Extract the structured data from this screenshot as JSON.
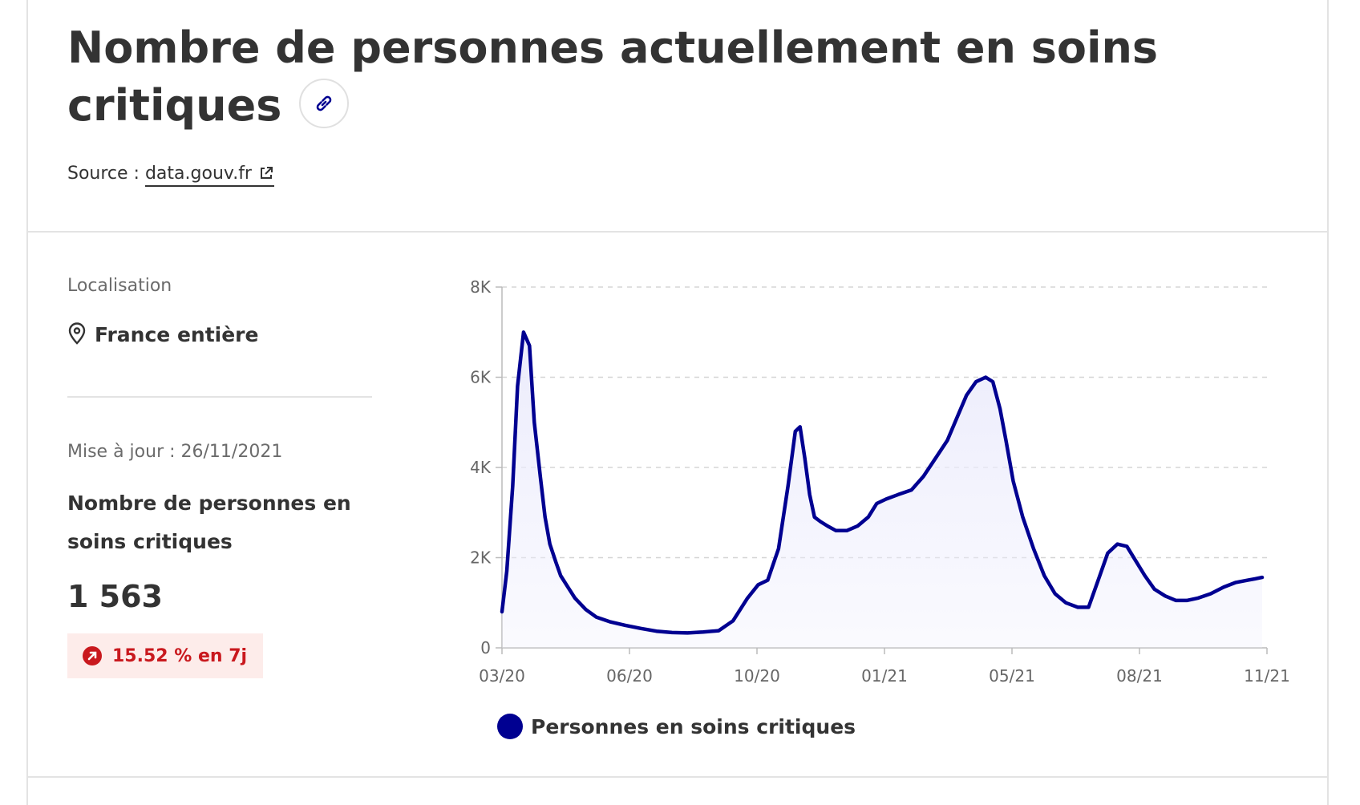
{
  "header": {
    "title": "Nombre de personnes actuellement en soins critiques",
    "source_prefix": "Source :",
    "source_link": "data.gouv.fr"
  },
  "sidebar": {
    "location_label": "Localisation",
    "location_value": "France entière",
    "updated": "Mise à jour : 26/11/2021",
    "kpi_label": "Nombre de personnes en soins critiques",
    "kpi_value": "1 563",
    "trend": "15.52 % en 7j"
  },
  "icons": {
    "link": "link-icon",
    "external": "external-link-icon",
    "location": "map-pin-icon",
    "trend": "arrow-up-right-icon"
  },
  "colors": {
    "series": "#000091",
    "area": "#ececfc",
    "trend_bg": "#fdecea",
    "trend_text": "#c9191e"
  },
  "chart_data": {
    "type": "area",
    "x_tick_labels": [
      "03/20",
      "06/20",
      "10/20",
      "01/21",
      "05/21",
      "08/21",
      "11/21"
    ],
    "y_tick_labels": [
      "0",
      "2K",
      "4K",
      "6K",
      "8K"
    ],
    "ylim": [
      0,
      8000
    ],
    "grid": "horizontal dashed",
    "legend_position": "bottom",
    "series": [
      {
        "name": "Personnes en soins critiques",
        "x": [
          "2020-03-01",
          "2020-03-05",
          "2020-03-10",
          "2020-03-14",
          "2020-03-19",
          "2020-03-24",
          "2020-03-28",
          "2020-04-02",
          "2020-04-06",
          "2020-04-10",
          "2020-04-15",
          "2020-04-19",
          "2020-04-25",
          "2020-05-01",
          "2020-05-10",
          "2020-05-19",
          "2020-05-30",
          "2020-06-12",
          "2020-06-25",
          "2020-07-08",
          "2020-07-21",
          "2020-08-03",
          "2020-08-16",
          "2020-08-29",
          "2020-09-10",
          "2020-09-22",
          "2020-10-01",
          "2020-10-09",
          "2020-10-18",
          "2020-10-26",
          "2020-11-01",
          "2020-11-05",
          "2020-11-09",
          "2020-11-13",
          "2020-11-17",
          "2020-11-22",
          "2020-11-28",
          "2020-12-05",
          "2020-12-14",
          "2020-12-23",
          "2021-01-01",
          "2021-01-08",
          "2021-01-16",
          "2021-01-26",
          "2021-02-06",
          "2021-02-16",
          "2021-02-26",
          "2021-03-08",
          "2021-03-16",
          "2021-03-24",
          "2021-04-01",
          "2021-04-09",
          "2021-04-15",
          "2021-04-21",
          "2021-04-26",
          "2021-05-02",
          "2021-05-10",
          "2021-05-19",
          "2021-05-28",
          "2021-06-06",
          "2021-06-15",
          "2021-06-25",
          "2021-07-04",
          "2021-07-12",
          "2021-07-20",
          "2021-07-28",
          "2021-08-05",
          "2021-08-13",
          "2021-08-20",
          "2021-08-28",
          "2021-09-06",
          "2021-09-15",
          "2021-09-24",
          "2021-10-03",
          "2021-10-14",
          "2021-10-25",
          "2021-11-04",
          "2021-11-14",
          "2021-11-20",
          "2021-11-26"
        ],
        "y": [
          800,
          1700,
          3600,
          5800,
          7000,
          6700,
          5000,
          3800,
          2900,
          2300,
          1900,
          1600,
          1350,
          1100,
          850,
          680,
          580,
          500,
          430,
          370,
          340,
          330,
          350,
          380,
          600,
          1100,
          1400,
          1500,
          2200,
          3600,
          4800,
          4900,
          4200,
          3400,
          2900,
          2800,
          2700,
          2600,
          2600,
          2700,
          2900,
          3200,
          3300,
          3400,
          3500,
          3800,
          4200,
          4600,
          5100,
          5600,
          5900,
          6000,
          5900,
          5300,
          4600,
          3700,
          2900,
          2200,
          1600,
          1200,
          1000,
          900,
          900,
          1500,
          2100,
          2300,
          2250,
          1900,
          1600,
          1300,
          1150,
          1050,
          1050,
          1100,
          1200,
          1350,
          1450,
          1500,
          1530,
          1563
        ]
      }
    ]
  }
}
